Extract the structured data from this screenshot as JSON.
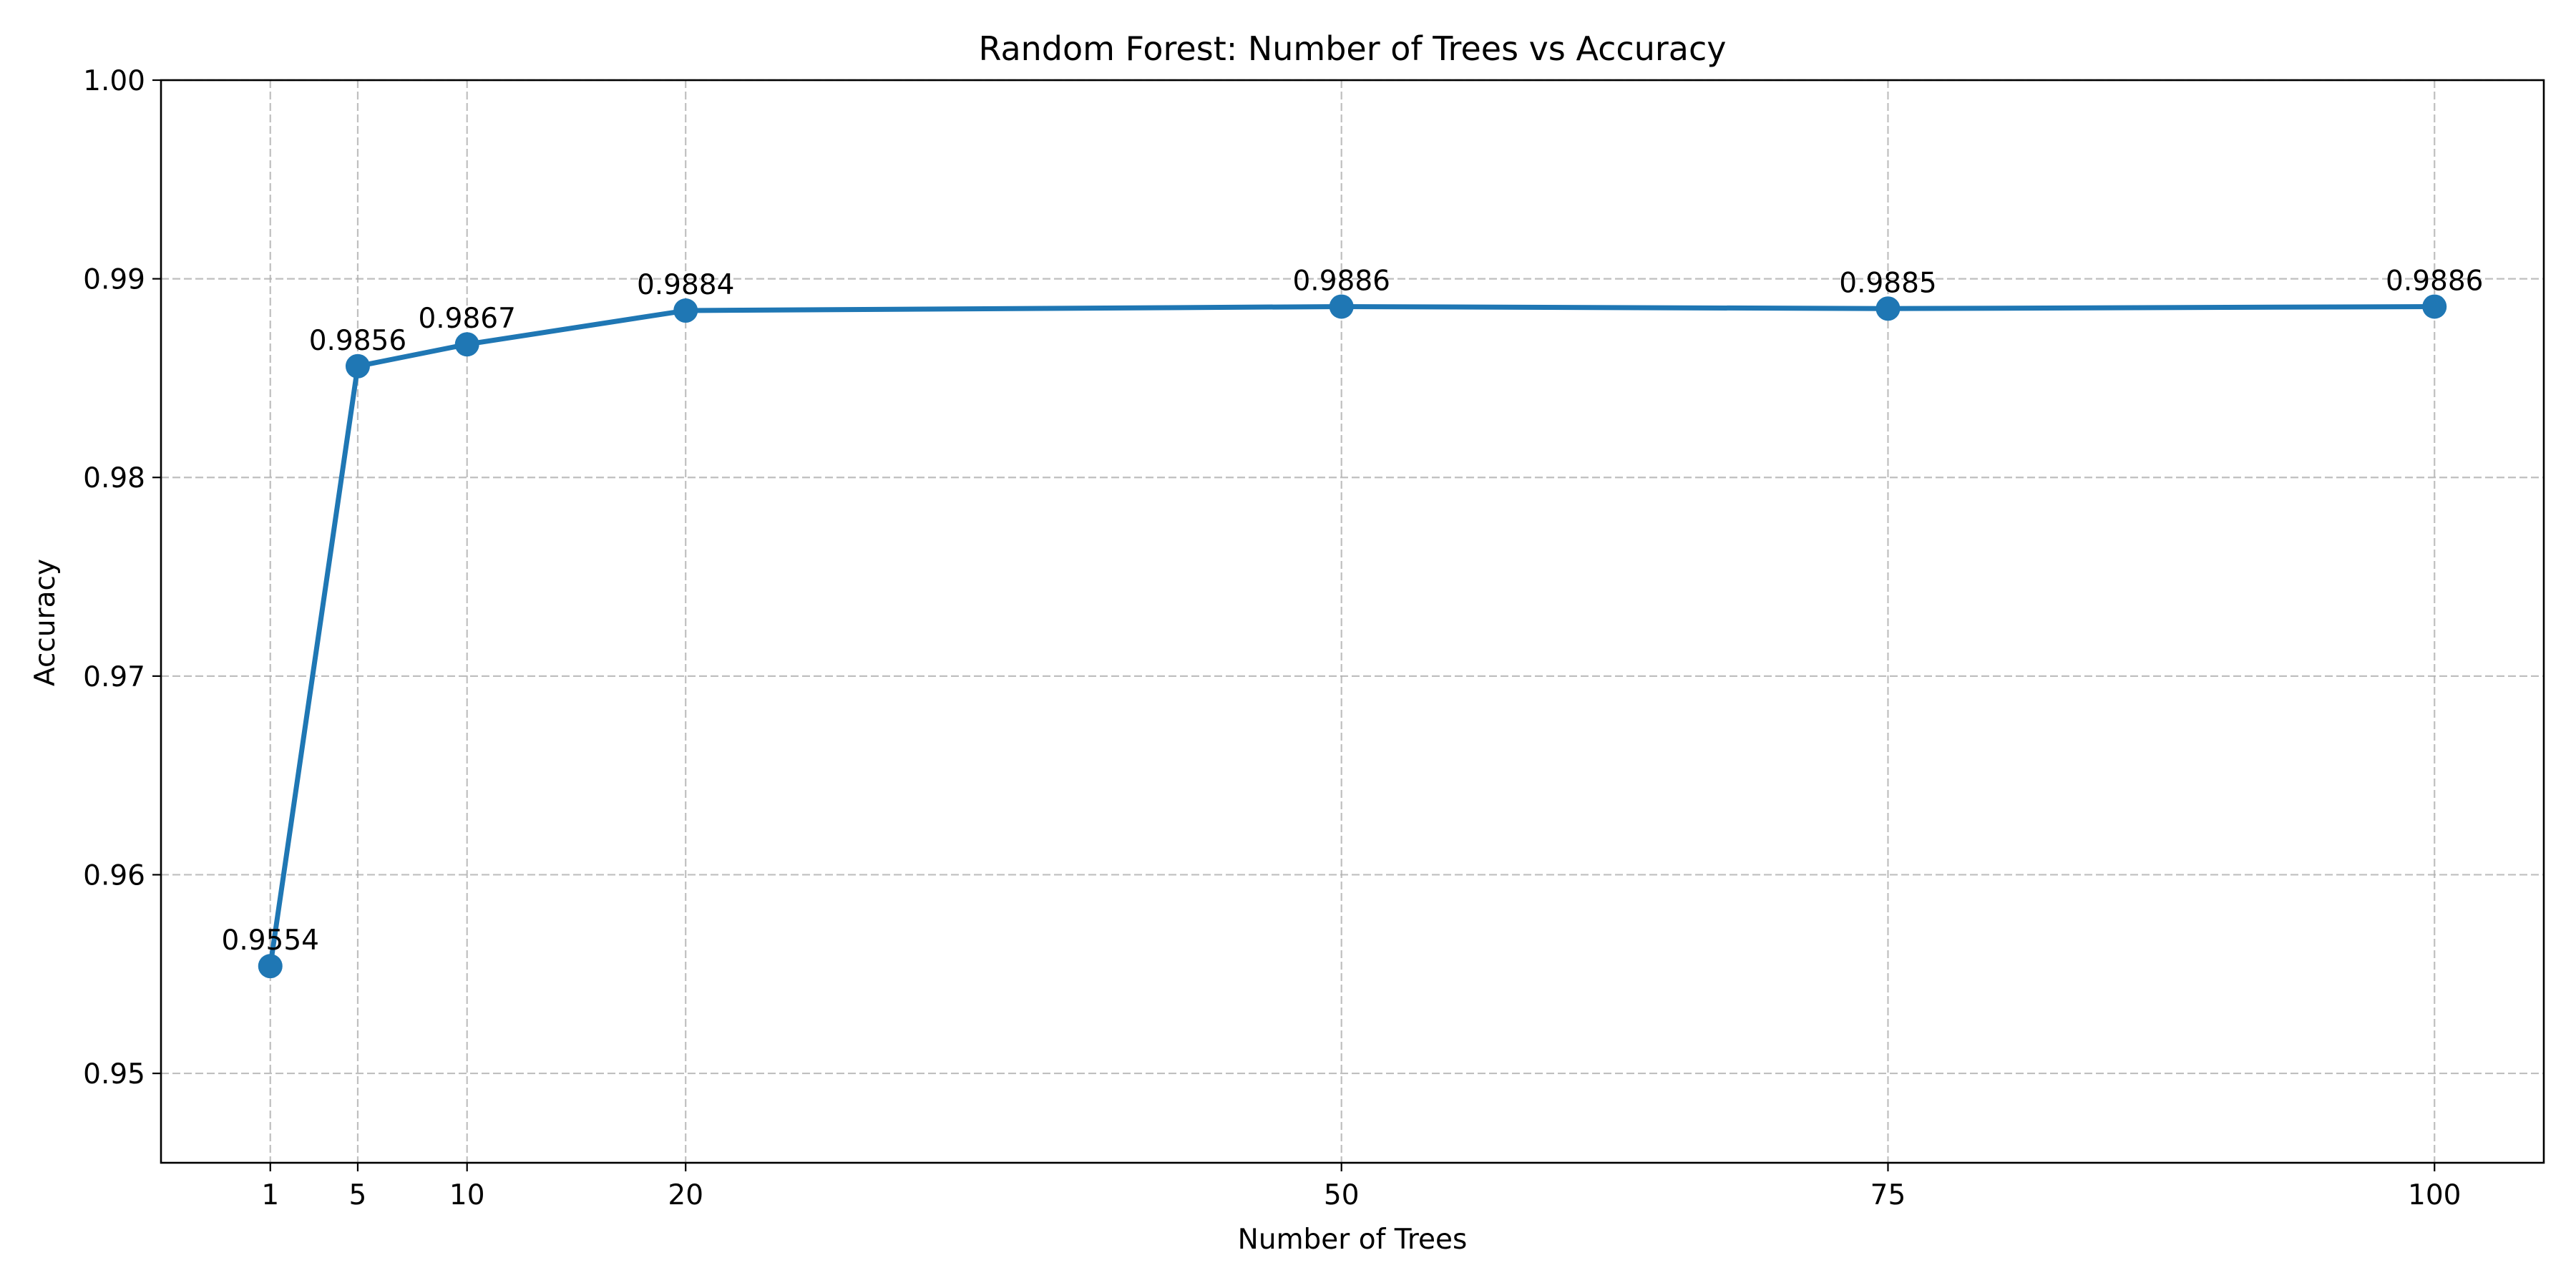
{
  "chart_data": {
    "type": "line",
    "title": "Random Forest: Number of Trees vs Accuracy",
    "xlabel": "Number of Trees",
    "ylabel": "Accuracy",
    "x": [
      1,
      5,
      10,
      20,
      50,
      75,
      100
    ],
    "xticks": [
      "1",
      "5",
      "10",
      "20",
      "50",
      "75",
      "100"
    ],
    "yticks": [
      "0.95",
      "0.96",
      "0.97",
      "0.98",
      "0.99",
      "1.00"
    ],
    "xlim": [
      -4,
      105
    ],
    "ylim": [
      0.9455,
      1.0
    ],
    "grid": true,
    "series": [
      {
        "values": [
          0.9554,
          0.9856,
          0.9867,
          0.9884,
          0.9886,
          0.9885,
          0.9886
        ],
        "data_labels": [
          "0.9554",
          "0.9856",
          "0.9867",
          "0.9884",
          "0.9886",
          "0.9885",
          "0.9886"
        ],
        "color": "#1f77b4",
        "marker": "circle"
      }
    ]
  }
}
